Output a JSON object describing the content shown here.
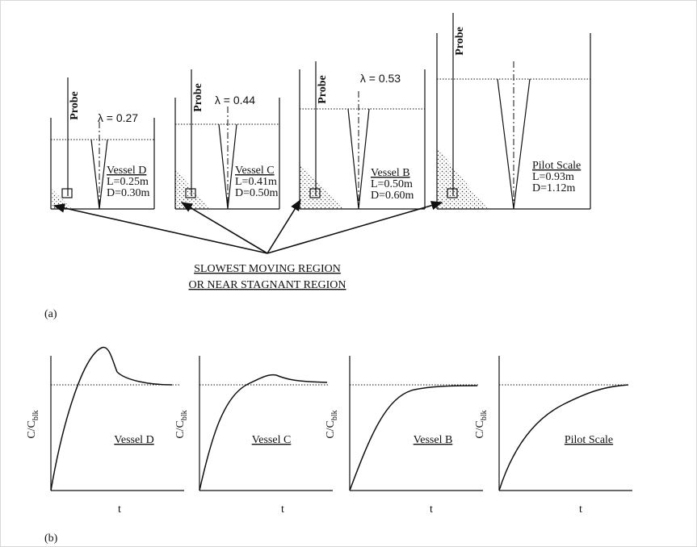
{
  "panel_a": {
    "label": "(a)",
    "vessels": [
      {
        "probe": "Probe",
        "lambda": "λ = 0.27",
        "name": "Vessel D",
        "L": "L=0.25m",
        "D": "D=0.30m"
      },
      {
        "probe": "Probe",
        "lambda": "λ = 0.44",
        "name": "Vessel C",
        "L": "L=0.41m",
        "D": "D=0.50m"
      },
      {
        "probe": "Probe",
        "lambda": "λ = 0.53",
        "name": "Vessel B",
        "L": "L=0.50m",
        "D": "D=0.60m"
      },
      {
        "probe": "Probe",
        "name": "Pilot Scale",
        "L": "L=0.93m",
        "D": "D=1.12m"
      }
    ],
    "caption": [
      "SLOWEST MOVING REGION",
      "OR NEAR STAGNANT REGION"
    ]
  },
  "panel_b": {
    "label": "(b)",
    "plots": [
      {
        "y_label": "C/C",
        "y_sub": "blk",
        "x_label": "t",
        "name": "Vessel D"
      },
      {
        "y_label": "C/C",
        "y_sub": "blk",
        "x_label": "t",
        "name": "Vessel C"
      },
      {
        "y_label": "C/C",
        "y_sub": "blk",
        "x_label": "t",
        "name": "Vessel B"
      },
      {
        "y_label": "C/C",
        "y_sub": "blk",
        "x_label": "t",
        "name": "Pilot Scale"
      }
    ]
  }
}
